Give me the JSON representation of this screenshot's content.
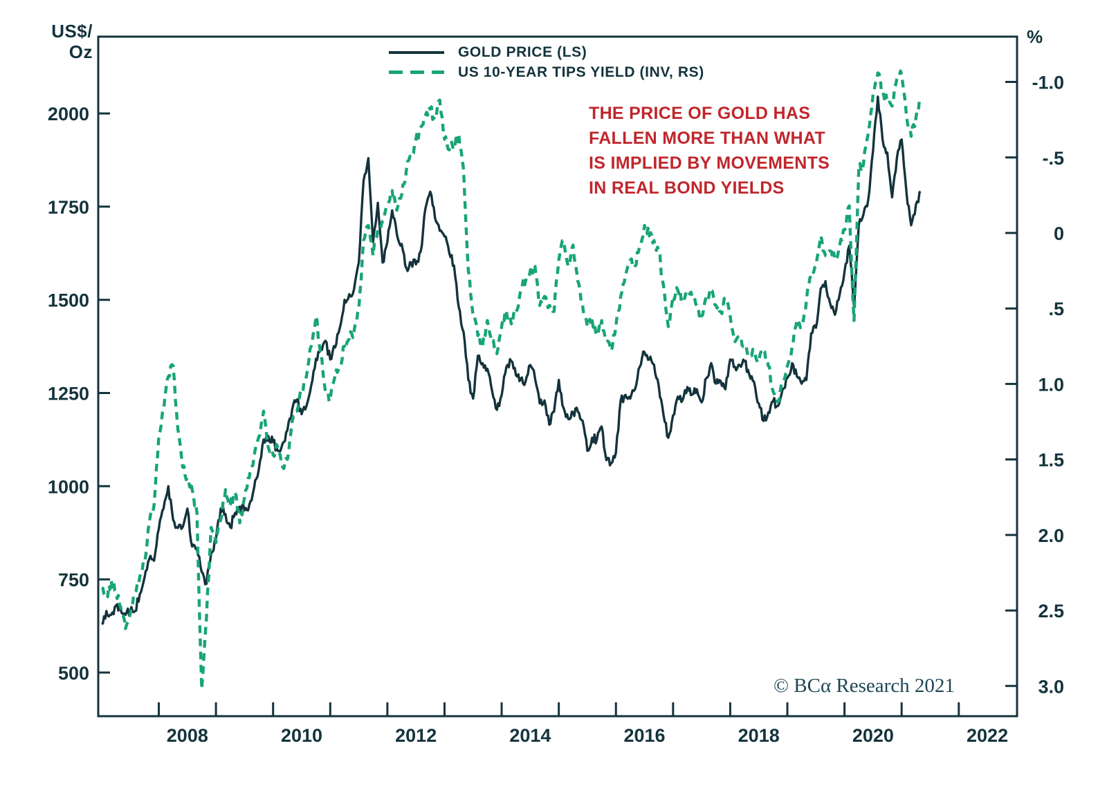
{
  "chart_data": {
    "type": "line",
    "title": "",
    "copyright": "© BCα Research 2021",
    "colors": {
      "gold_line": "#14333C",
      "tips_line": "#18A478",
      "axis": "#14333C",
      "annotation_red": "#C0262C",
      "copyright_teal": "#1D4654",
      "background": "#FFFFFF"
    },
    "annotation": {
      "lines": [
        "THE PRICE OF GOLD HAS",
        "FALLEN MORE THAN WHAT",
        "IS IMPLIED BY MOVEMENTS",
        "IN REAL BOND YIELDS"
      ]
    },
    "left_axis": {
      "unit_line1": "US$/",
      "unit_line2": "Oz",
      "ticks": [
        2000,
        1750,
        1500,
        1250,
        1000,
        750,
        500
      ],
      "ylim": [
        383,
        2206
      ]
    },
    "right_axis": {
      "unit": "%",
      "tick_labels": [
        "-1.0",
        "-.5",
        "0",
        ".5",
        "1.0",
        "1.5",
        "2.0",
        "2.5",
        "3.0"
      ],
      "tick_values": [
        -1.0,
        -0.5,
        0,
        0.5,
        1.0,
        1.5,
        2.0,
        2.5,
        3.0
      ],
      "inverted": true,
      "ylim": [
        -1.3,
        3.2
      ]
    },
    "x_axis": {
      "x_start": 2007.0,
      "x_step": 0.0833333,
      "range": [
        2006.94,
        2023.02
      ],
      "tick_years": [
        2008,
        2009,
        2010,
        2011,
        2012,
        2013,
        2014,
        2015,
        2016,
        2017,
        2018,
        2019,
        2020,
        2021,
        2022
      ],
      "label_years": [
        2008,
        2010,
        2012,
        2014,
        2016,
        2018,
        2020,
        2022
      ]
    },
    "series": [
      {
        "name": "GOLD PRICE (LS)",
        "axis": "left",
        "style": "solid",
        "unit": "US$/Oz",
        "sampling": "monthly, Jan 2007 - May 2021",
        "values": [
          630,
          665,
          655,
          680,
          668,
          655,
          665,
          665,
          710,
          755,
          805,
          800,
          885,
          940,
          1000,
          910,
          888,
          890,
          940,
          838,
          830,
          770,
          738,
          820,
          858,
          940,
          925,
          890,
          928,
          945,
          935,
          950,
          995,
          1045,
          1125,
          1135,
          1118,
          1095,
          1115,
          1150,
          1205,
          1232,
          1193,
          1215,
          1270,
          1342,
          1370,
          1390,
          1340,
          1372,
          1424,
          1500,
          1515,
          1528,
          1600,
          1820,
          1880,
          1655,
          1760,
          1600,
          1655,
          1740,
          1675,
          1650,
          1585,
          1600,
          1595,
          1630,
          1745,
          1790,
          1720,
          1685,
          1670,
          1625,
          1592,
          1480,
          1414,
          1285,
          1235,
          1350,
          1330,
          1315,
          1255,
          1205,
          1244,
          1320,
          1336,
          1298,
          1288,
          1280,
          1325,
          1290,
          1222,
          1230,
          1165,
          1200,
          1285,
          1210,
          1180,
          1198,
          1200,
          1175,
          1095,
          1130,
          1125,
          1160,
          1070,
          1062,
          1090,
          1230,
          1245,
          1235,
          1260,
          1320,
          1360,
          1340,
          1326,
          1268,
          1190,
          1130,
          1190,
          1240,
          1231,
          1266,
          1246,
          1260,
          1225,
          1290,
          1330,
          1275,
          1282,
          1260,
          1340,
          1320,
          1325,
          1335,
          1300,
          1280,
          1222,
          1175,
          1198,
          1228,
          1215,
          1260,
          1290,
          1330,
          1295,
          1275,
          1285,
          1410,
          1425,
          1530,
          1550,
          1490,
          1460,
          1515,
          1575,
          1645,
          1480,
          1700,
          1730,
          1770,
          1900,
          2045,
          1930,
          1895,
          1775,
          1880,
          1930,
          1790,
          1700,
          1755,
          1790
        ]
      },
      {
        "name": "US 10-YEAR TIPS YIELD (INV, RS)",
        "axis": "right",
        "style": "dashed",
        "unit": "%",
        "sampling": "monthly, Jan 2007 - May 2021",
        "values": [
          2.35,
          2.42,
          2.3,
          2.38,
          2.48,
          2.62,
          2.52,
          2.38,
          2.28,
          2.18,
          1.92,
          1.8,
          1.35,
          1.18,
          0.95,
          0.88,
          1.3,
          1.55,
          1.62,
          1.7,
          1.85,
          3.02,
          2.55,
          1.95,
          2.05,
          1.9,
          1.7,
          1.8,
          1.72,
          1.92,
          1.75,
          1.62,
          1.48,
          1.35,
          1.18,
          1.42,
          1.47,
          1.42,
          1.55,
          1.5,
          1.25,
          1.18,
          1.05,
          0.95,
          0.75,
          0.55,
          0.8,
          1.05,
          1.1,
          0.95,
          0.88,
          0.75,
          0.7,
          0.65,
          0.5,
          0.05,
          -0.05,
          0.15,
          -0.02,
          -0.08,
          -0.18,
          -0.28,
          -0.15,
          -0.25,
          -0.42,
          -0.5,
          -0.62,
          -0.7,
          -0.78,
          -0.82,
          -0.75,
          -0.88,
          -0.62,
          -0.55,
          -0.6,
          -0.65,
          -0.42,
          0.25,
          0.55,
          0.68,
          0.75,
          0.58,
          0.72,
          0.8,
          0.62,
          0.52,
          0.6,
          0.52,
          0.38,
          0.32,
          0.25,
          0.22,
          0.48,
          0.42,
          0.48,
          0.52,
          0.18,
          0.05,
          0.22,
          0.08,
          0.32,
          0.48,
          0.62,
          0.58,
          0.68,
          0.58,
          0.72,
          0.78,
          0.62,
          0.42,
          0.28,
          0.18,
          0.22,
          0.08,
          -0.05,
          0.02,
          0.05,
          0.12,
          0.35,
          0.62,
          0.42,
          0.38,
          0.45,
          0.38,
          0.42,
          0.48,
          0.55,
          0.42,
          0.38,
          0.48,
          0.52,
          0.45,
          0.55,
          0.72,
          0.68,
          0.75,
          0.82,
          0.78,
          0.85,
          0.78,
          0.88,
          1.05,
          1.12,
          0.98,
          0.88,
          0.75,
          0.58,
          0.62,
          0.45,
          0.28,
          0.22,
          0.02,
          0.15,
          0.12,
          0.18,
          0.08,
          -0.02,
          -0.18,
          0.58,
          -0.42,
          -0.46,
          -0.66,
          -0.92,
          -1.06,
          -0.94,
          -0.86,
          -0.84,
          -1.02,
          -1.05,
          -0.78,
          -0.64,
          -0.76,
          -0.9
        ]
      }
    ]
  }
}
